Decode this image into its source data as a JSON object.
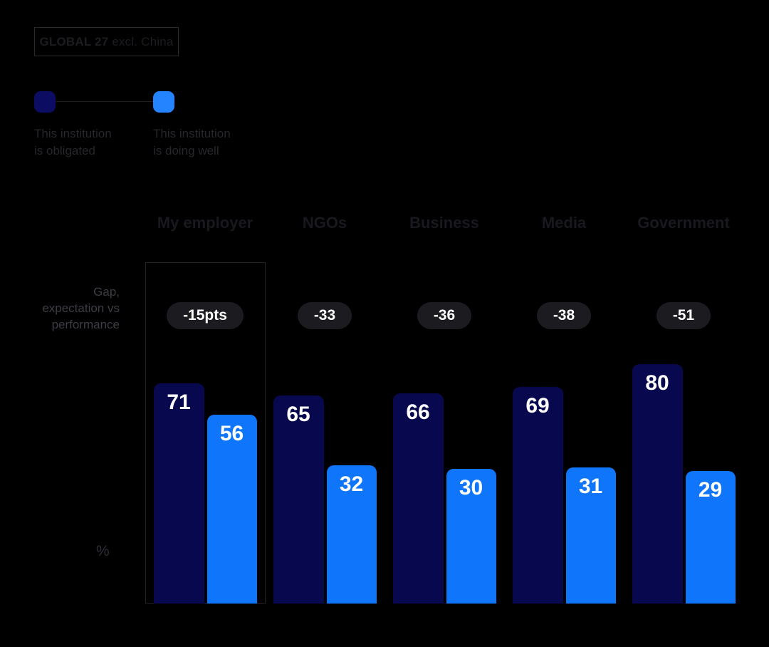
{
  "badge": {
    "bold": "GLOBAL 27",
    "rest": " excl. China"
  },
  "legend": {
    "items": [
      {
        "line1": "This institution",
        "line2": "is obligated",
        "color": "#0c0c63",
        "swatch_icon": "navy-rounded-square-icon"
      },
      {
        "line1": "This institution",
        "line2": "is doing well",
        "color": "#2484ff",
        "swatch_icon": "blue-rounded-square-icon"
      }
    ]
  },
  "annotations": {
    "gap_note_line1": "Gap,",
    "gap_note_line2": "expectation vs",
    "gap_note_line3": "performance",
    "unit_label": "%"
  },
  "colors": {
    "background": "#000000",
    "bar_navy": "#08084f",
    "bar_blue": "#0f76fb",
    "pill_background": "#1c1c20",
    "pill_text": "#ffffff",
    "highlight_box_border": "#232327"
  },
  "chart_data": {
    "type": "bar",
    "title": "GLOBAL 27 excl. China",
    "categories": [
      "My employer",
      "NGOs",
      "Business",
      "Media",
      "Government"
    ],
    "series": [
      {
        "name": "This institution is obligated",
        "color": "#08084f",
        "values": [
          71,
          65,
          66,
          69,
          80
        ]
      },
      {
        "name": "This institution is doing well",
        "color": "#0f76fb",
        "values": [
          56,
          32,
          30,
          31,
          29
        ]
      }
    ],
    "gap_labels": [
      "-15pts",
      "-33",
      "-36",
      "-38",
      "-51"
    ],
    "gap_row_label": "Gap, expectation vs performance",
    "ylabel": "%",
    "ylim": [
      0,
      100
    ],
    "grid": false,
    "legend_position": "top-left",
    "highlighted_category": "My employer"
  }
}
